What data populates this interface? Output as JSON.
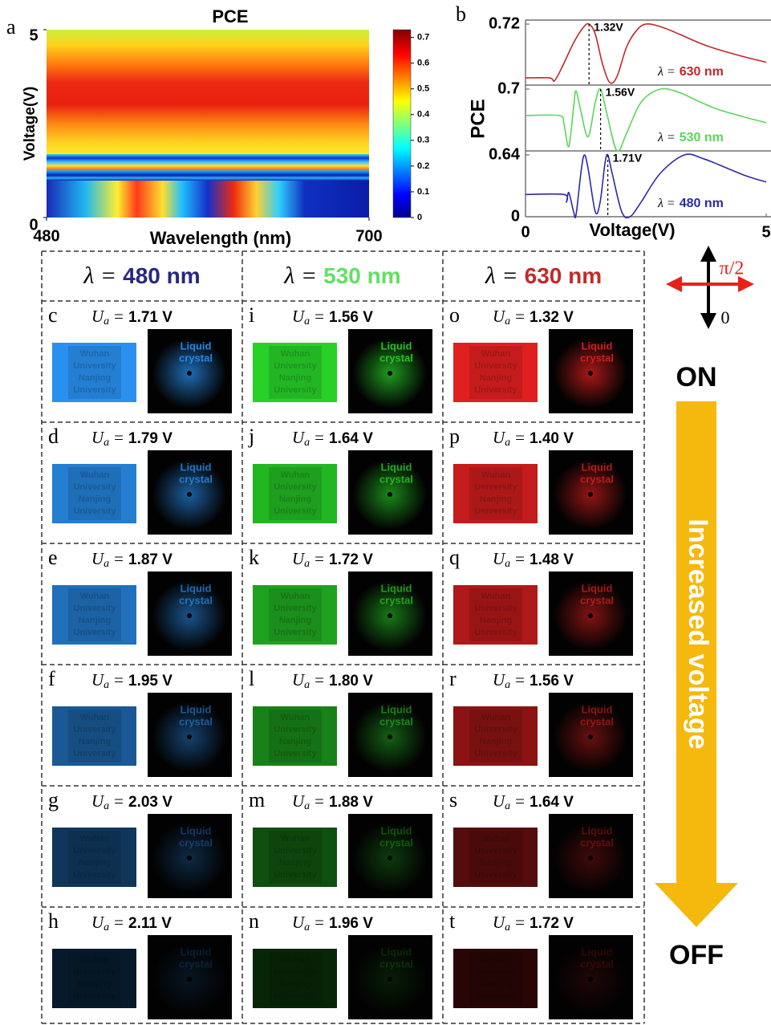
{
  "panel_labels": [
    "a",
    "b"
  ],
  "chart_data": [
    {
      "type": "heatmap",
      "title": "PCE",
      "x_label": "Wavelength (nm)",
      "y_label": "Voltage(V)",
      "xlim": [
        480,
        700
      ],
      "xticks": [
        480,
        700
      ],
      "ylim": [
        0,
        5
      ],
      "yticks": [
        0,
        5
      ],
      "colorbar": {
        "lim": [
          0,
          0.73
        ],
        "ticks": [
          0,
          0.1,
          0.2,
          0.3,
          0.4,
          0.5,
          0.6,
          0.7
        ]
      }
    },
    {
      "type": "line",
      "x_label": "Voltage(V)",
      "y_label": "PCE",
      "xlim": [
        0,
        5
      ],
      "xticks": [
        0,
        5
      ],
      "legend_prefix": "λ =",
      "panels": [
        {
          "ylim": [
            0,
            0.72
          ],
          "yticks": [
            0.72
          ],
          "marker": {
            "value": 1.32,
            "label": "1.32V"
          },
          "series": [
            {
              "name": "630 nm",
              "color": "#c0282d",
              "x": [
                0,
                0.5,
                0.6,
                0.75,
                1.0,
                1.2,
                1.32,
                1.45,
                1.6,
                1.75,
                1.9,
                2.1,
                2.3,
                2.5,
                2.8,
                3.2,
                3.6,
                4.0,
                4.5,
                5.0
              ],
              "values": [
                0.085,
                0.085,
                0.05,
                0.2,
                0.5,
                0.68,
                0.72,
                0.6,
                0.25,
                0.03,
                0.1,
                0.45,
                0.64,
                0.72,
                0.69,
                0.6,
                0.5,
                0.42,
                0.34,
                0.27
              ]
            }
          ]
        },
        {
          "ylim": [
            0,
            0.7
          ],
          "yticks": [
            0.7
          ],
          "marker": {
            "value": 1.56,
            "label": "1.56V"
          },
          "series": [
            {
              "name": "530 nm",
              "color": "#5bd65b",
              "x": [
                0,
                0.7,
                0.8,
                0.9,
                1.0,
                1.05,
                1.15,
                1.3,
                1.45,
                1.56,
                1.7,
                1.9,
                2.1,
                2.4,
                2.8,
                3.2,
                3.6,
                4.0,
                4.5,
                5.0
              ],
              "values": [
                0.4,
                0.4,
                0.3,
                0.05,
                0.5,
                0.68,
                0.45,
                0.16,
                0.55,
                0.7,
                0.4,
                0.0,
                0.2,
                0.55,
                0.7,
                0.66,
                0.56,
                0.47,
                0.39,
                0.32
              ]
            }
          ]
        },
        {
          "ylim": [
            0,
            0.64
          ],
          "yticks": [
            0,
            0.64
          ],
          "marker": {
            "value": 1.71,
            "label": "1.71V"
          },
          "series": [
            {
              "name": "480 nm",
              "color": "#2a2aa8",
              "x": [
                0,
                0.8,
                0.85,
                0.9,
                1.0,
                1.05,
                1.15,
                1.22,
                1.3,
                1.45,
                1.55,
                1.65,
                1.71,
                1.8,
                2.0,
                2.17,
                2.4,
                2.8,
                3.3,
                3.7,
                4.2,
                4.6,
                5.0
              ],
              "values": [
                0.23,
                0.23,
                0.15,
                0.25,
                0.05,
                0.02,
                0.45,
                0.64,
                0.5,
                0.05,
                0.15,
                0.55,
                0.64,
                0.45,
                0.05,
                0.0,
                0.15,
                0.45,
                0.64,
                0.6,
                0.5,
                0.42,
                0.36
              ]
            }
          ]
        }
      ]
    }
  ],
  "grid": {
    "prefix": "λ =",
    "voltage_symbol": "U",
    "voltage_index": "a",
    "equals": "=",
    "photo_text": [
      "Wuhan",
      "University",
      "Nanjing",
      "University"
    ],
    "screen_text": [
      "Liquid",
      "crystal"
    ],
    "columns": [
      {
        "wavelength": "480 nm",
        "header_color": "#28287e",
        "photo_color": "#2a90f0",
        "cells": [
          {
            "letter": "c",
            "voltage": "1.71 V"
          },
          {
            "letter": "d",
            "voltage": "1.79 V"
          },
          {
            "letter": "e",
            "voltage": "1.87 V"
          },
          {
            "letter": "f",
            "voltage": "1.95 V"
          },
          {
            "letter": "g",
            "voltage": "2.03 V"
          },
          {
            "letter": "h",
            "voltage": "2.11 V"
          }
        ]
      },
      {
        "wavelength": "530 nm",
        "header_color": "#62e062",
        "photo_color": "#28d028",
        "cells": [
          {
            "letter": "i",
            "voltage": "1.56 V"
          },
          {
            "letter": "j",
            "voltage": "1.64 V"
          },
          {
            "letter": "k",
            "voltage": "1.72 V"
          },
          {
            "letter": "l",
            "voltage": "1.80 V"
          },
          {
            "letter": "m",
            "voltage": "1.88 V"
          },
          {
            "letter": "n",
            "voltage": "1.96 V"
          }
        ]
      },
      {
        "wavelength": "630 nm",
        "header_color": "#c42a2a",
        "photo_color": "#e02020",
        "cells": [
          {
            "letter": "o",
            "voltage": "1.32 V"
          },
          {
            "letter": "p",
            "voltage": "1.40 V"
          },
          {
            "letter": "q",
            "voltage": "1.48 V"
          },
          {
            "letter": "r",
            "voltage": "1.56 V"
          },
          {
            "letter": "s",
            "voltage": "1.64 V"
          },
          {
            "letter": "t",
            "voltage": "1.72 V"
          }
        ]
      }
    ]
  },
  "side": {
    "polarization_top": "π/2",
    "polarization_bottom": "0",
    "on": "ON",
    "arrow_text": "Increased voltage",
    "off": "OFF"
  }
}
